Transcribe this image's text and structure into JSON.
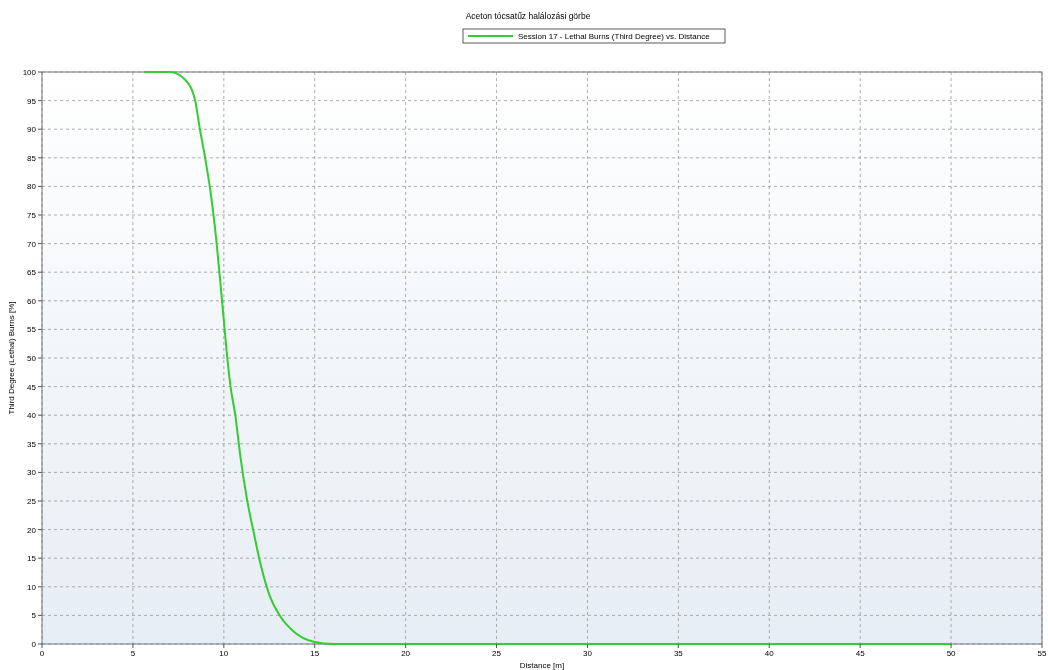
{
  "chart_data": {
    "type": "line",
    "title": "Aceton tócsatűz halálozási görbe",
    "xlabel": "Distance [m]",
    "ylabel": "Third Degree (Lethal) Burns [%]",
    "x": [
      5.68,
      7.04,
      7.86,
      8.41,
      8.69,
      8.96,
      9.23,
      9.51,
      9.78,
      10.0,
      10.2,
      10.37,
      10.64,
      10.91,
      11.28,
      11.65,
      12.01,
      12.47,
      13.11,
      13.84,
      14.94,
      16.03,
      20,
      30,
      40,
      50
    ],
    "series": [
      {
        "name": "Session 17 - Lethal Burns (Third Degree) vs. Distance",
        "color": "#33cc33",
        "values": [
          100,
          100,
          98.7,
          95.2,
          89.9,
          85.2,
          79.9,
          72.9,
          64.2,
          56.6,
          49.7,
          45,
          39.8,
          32.8,
          25.2,
          19.4,
          14.1,
          8.9,
          4.8,
          2.2,
          0.4,
          0,
          0,
          0,
          0,
          0
        ]
      }
    ],
    "xlim": [
      0,
      55
    ],
    "xticks": [
      0,
      5,
      10,
      15,
      20,
      25,
      30,
      35,
      40,
      45,
      50,
      55
    ],
    "ylim": [
      0,
      100
    ],
    "yticks": [
      0,
      5,
      10,
      15,
      20,
      25,
      30,
      35,
      40,
      45,
      50,
      55,
      60,
      65,
      70,
      75,
      80,
      85,
      90,
      95,
      100
    ],
    "grid": true,
    "legend": "top",
    "marker": "none",
    "line_style": "solid"
  }
}
